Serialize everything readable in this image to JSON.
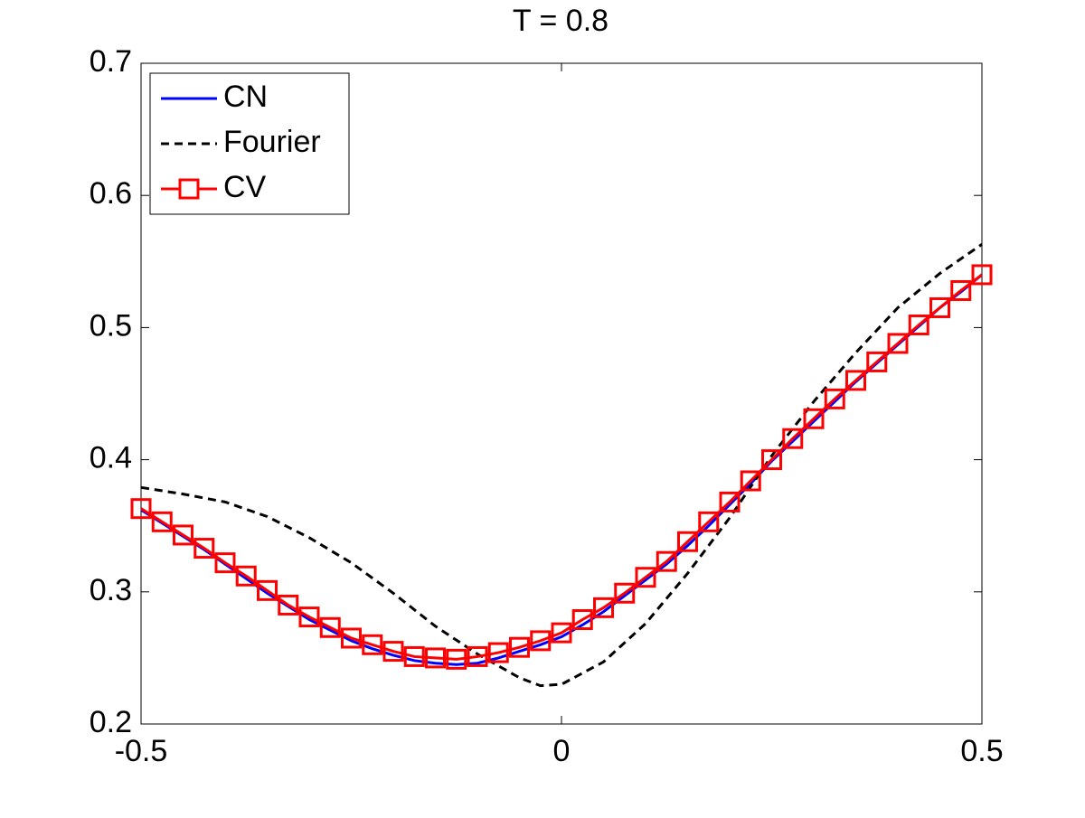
{
  "chart_data": {
    "type": "line",
    "title": "T = 0.8",
    "xlim": [
      -0.5,
      0.5
    ],
    "xticks": [
      -0.5,
      0,
      0.5
    ],
    "ylim": [
      0.2,
      0.7
    ],
    "yticks": [
      0.2,
      0.3,
      0.4,
      0.5,
      0.6,
      0.7
    ],
    "legend": "upper-left",
    "series": [
      {
        "name": "CN",
        "color": "#0000ff",
        "style": "solid",
        "x": [
          -0.5,
          -0.475,
          -0.45,
          -0.425,
          -0.4,
          -0.375,
          -0.35,
          -0.325,
          -0.3,
          -0.275,
          -0.25,
          -0.225,
          -0.2,
          -0.175,
          -0.15,
          -0.125,
          -0.1,
          -0.075,
          -0.05,
          -0.025,
          0,
          0.025,
          0.05,
          0.075,
          0.1,
          0.125,
          0.15,
          0.175,
          0.2,
          0.225,
          0.25,
          0.275,
          0.3,
          0.325,
          0.35,
          0.375,
          0.4,
          0.425,
          0.45,
          0.475,
          0.5
        ],
        "values": [
          0.362,
          0.352,
          0.342,
          0.332,
          0.321,
          0.31,
          0.299,
          0.289,
          0.279,
          0.271,
          0.263,
          0.257,
          0.252,
          0.248,
          0.246,
          0.245,
          0.246,
          0.25,
          0.255,
          0.26,
          0.266,
          0.275,
          0.285,
          0.297,
          0.309,
          0.321,
          0.335,
          0.35,
          0.366,
          0.382,
          0.399,
          0.414,
          0.429,
          0.444,
          0.459,
          0.473,
          0.487,
          0.501,
          0.515,
          0.527,
          0.54
        ]
      },
      {
        "name": "Fourier",
        "color": "#000000",
        "style": "dashed",
        "x": [
          -0.5,
          -0.45,
          -0.4,
          -0.35,
          -0.3,
          -0.25,
          -0.2,
          -0.15,
          -0.1,
          -0.05,
          -0.025,
          0,
          0.05,
          0.1,
          0.15,
          0.2,
          0.25,
          0.3,
          0.35,
          0.4,
          0.45,
          0.5
        ],
        "values": [
          0.379,
          0.374,
          0.368,
          0.357,
          0.341,
          0.322,
          0.299,
          0.274,
          0.253,
          0.235,
          0.229,
          0.23,
          0.247,
          0.276,
          0.314,
          0.356,
          0.403,
          0.444,
          0.481,
          0.515,
          0.541,
          0.563
        ]
      },
      {
        "name": "CV",
        "color": "#ff0000",
        "style": "solid",
        "marker": "square",
        "x": [
          -0.5,
          -0.475,
          -0.45,
          -0.425,
          -0.4,
          -0.375,
          -0.35,
          -0.325,
          -0.3,
          -0.275,
          -0.25,
          -0.225,
          -0.2,
          -0.175,
          -0.15,
          -0.125,
          -0.1,
          -0.075,
          -0.05,
          -0.025,
          0,
          0.025,
          0.05,
          0.075,
          0.1,
          0.125,
          0.15,
          0.175,
          0.2,
          0.225,
          0.25,
          0.275,
          0.3,
          0.325,
          0.35,
          0.375,
          0.4,
          0.425,
          0.45,
          0.475,
          0.5
        ],
        "values": [
          0.363,
          0.353,
          0.343,
          0.333,
          0.322,
          0.312,
          0.301,
          0.29,
          0.281,
          0.273,
          0.265,
          0.26,
          0.255,
          0.251,
          0.25,
          0.249,
          0.251,
          0.254,
          0.258,
          0.263,
          0.269,
          0.279,
          0.288,
          0.299,
          0.311,
          0.323,
          0.338,
          0.353,
          0.368,
          0.384,
          0.4,
          0.416,
          0.431,
          0.446,
          0.46,
          0.474,
          0.488,
          0.502,
          0.515,
          0.528,
          0.54
        ]
      }
    ]
  }
}
